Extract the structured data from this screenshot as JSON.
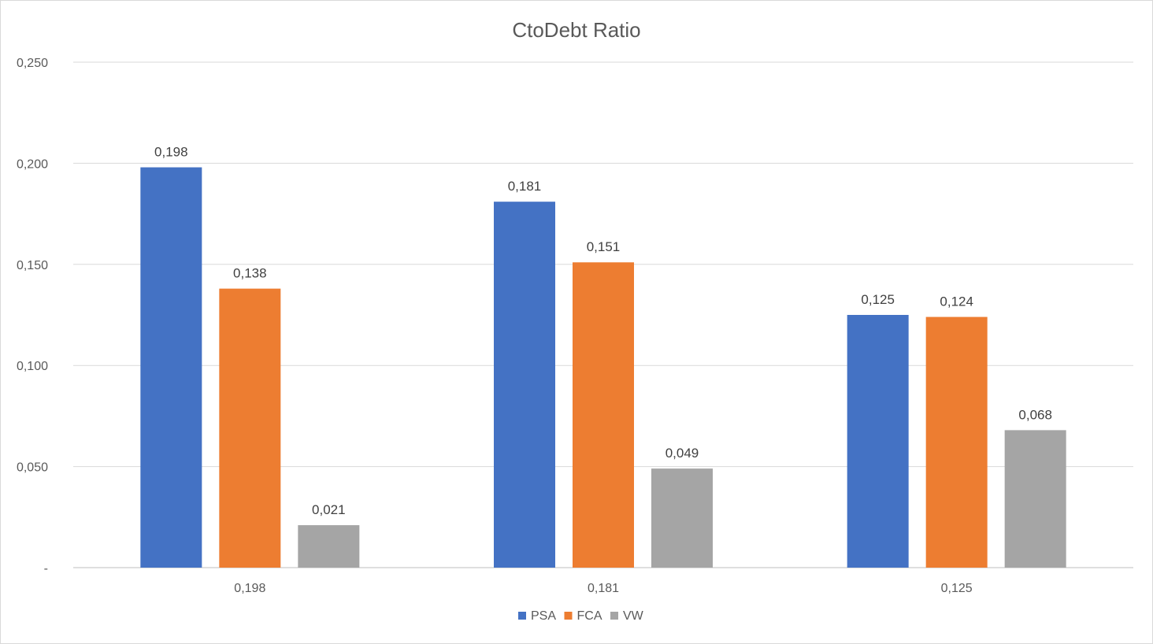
{
  "chart_data": {
    "type": "bar",
    "title": "CtoDebt Ratio",
    "xlabel": "",
    "ylabel": "",
    "categories": [
      "0,198",
      "0,181",
      "0,125"
    ],
    "series": [
      {
        "name": "PSA",
        "color": "#4472C4",
        "values": [
          0.198,
          0.181,
          0.125
        ],
        "labels": [
          "0,198",
          "0,181",
          "0,125"
        ]
      },
      {
        "name": "FCA",
        "color": "#ED7D31",
        "values": [
          0.138,
          0.151,
          0.124
        ],
        "labels": [
          "0,138",
          "0,151",
          "0,124"
        ]
      },
      {
        "name": "VW",
        "color": "#A5A5A5",
        "values": [
          0.021,
          0.049,
          0.068
        ],
        "labels": [
          "0,021",
          "0,049",
          "0,068"
        ]
      }
    ],
    "ylim": [
      0,
      0.25
    ],
    "yticks": [
      {
        "value": 0,
        "label": "-"
      },
      {
        "value": 0.05,
        "label": "0,050"
      },
      {
        "value": 0.1,
        "label": "0,100"
      },
      {
        "value": 0.15,
        "label": "0,150"
      },
      {
        "value": 0.2,
        "label": "0,200"
      },
      {
        "value": 0.25,
        "label": "0,250"
      }
    ],
    "grid": true,
    "legend": "bottom",
    "gridline_color": "#d9d9d9",
    "axis_color": "#bfbfbf"
  }
}
